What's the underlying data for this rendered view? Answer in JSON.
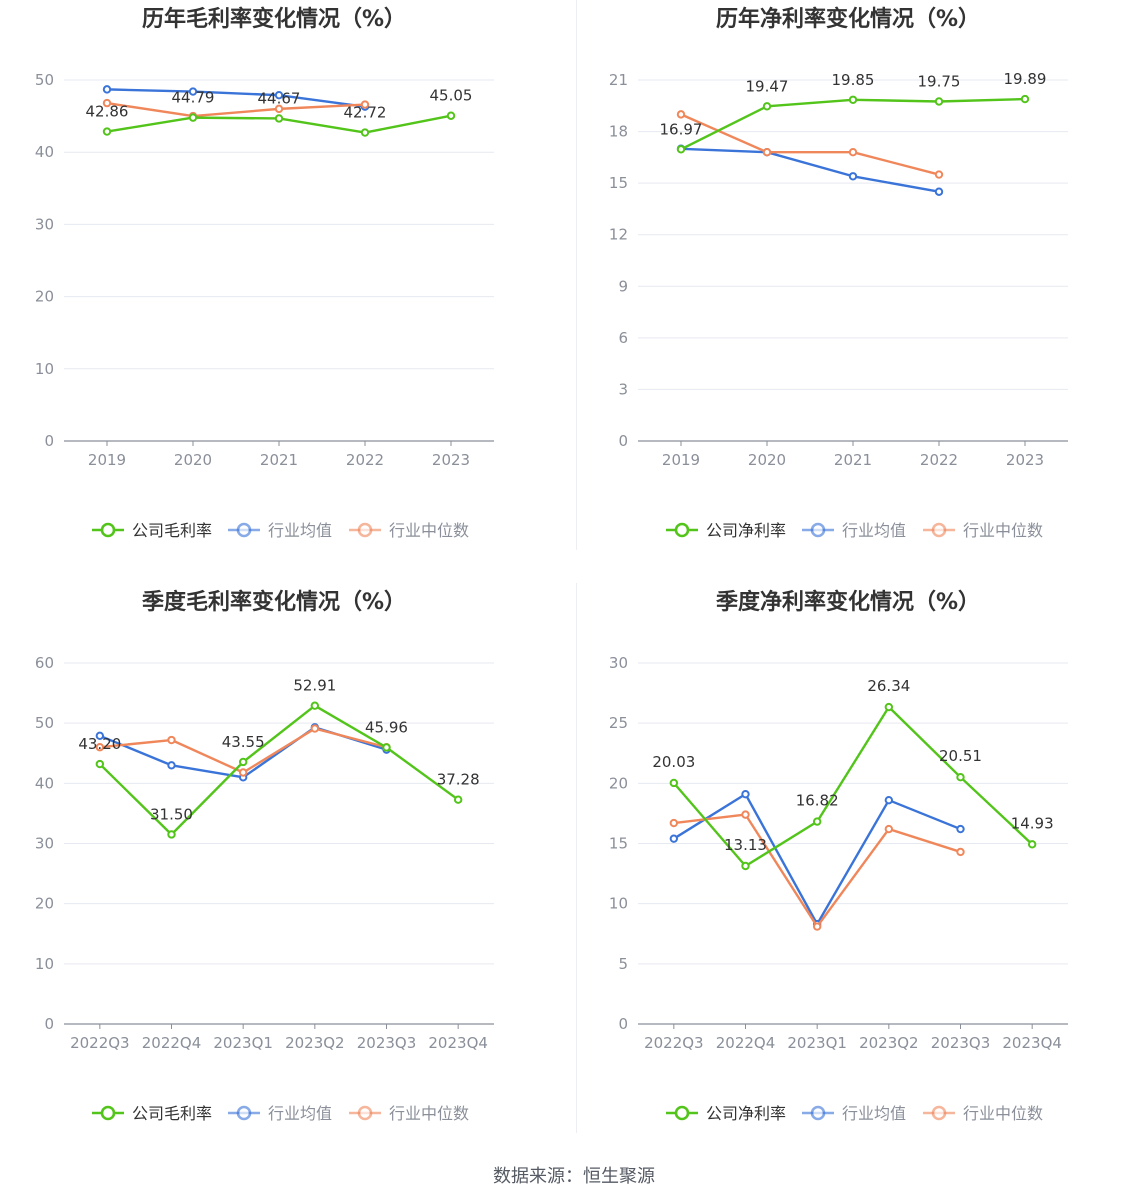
{
  "source_text": "数据来源：恒生聚源",
  "legend_labels": {
    "company_gross": "公司毛利率",
    "company_net": "公司净利率",
    "industry_mean": "行业均值",
    "industry_median": "行业中位数"
  },
  "colors": {
    "company": "#52c41a",
    "industry_mean": "#3a74d9",
    "industry_median": "#f0875b",
    "grid": "#e6e9f0",
    "axis": "#8a8f99",
    "tick_text": "#8a8f99",
    "title": "#333333",
    "data_label": "#333333"
  },
  "chart_data": [
    {
      "type": "line",
      "title": "历年毛利率变化情况（%）",
      "categories": [
        "2019",
        "2020",
        "2021",
        "2022",
        "2023"
      ],
      "ylim": [
        0,
        50
      ],
      "yticks": [
        0,
        10,
        20,
        30,
        40,
        50
      ],
      "series": [
        {
          "key": "company",
          "name": "公司毛利率",
          "values": [
            42.86,
            44.79,
            44.67,
            42.72,
            45.05
          ],
          "labels": [
            "42.86",
            "44.79",
            "44.67",
            "42.72",
            "45.05"
          ]
        },
        {
          "key": "industry_mean",
          "name": "行业均值",
          "values": [
            48.7,
            48.4,
            47.9,
            46.3,
            null
          ]
        },
        {
          "key": "industry_median",
          "name": "行业中位数",
          "values": [
            46.8,
            45.0,
            46.0,
            46.6,
            null
          ]
        }
      ]
    },
    {
      "type": "line",
      "title": "历年净利率变化情况（%）",
      "categories": [
        "2019",
        "2020",
        "2021",
        "2022",
        "2023"
      ],
      "ylim": [
        0,
        21
      ],
      "yticks": [
        0,
        3,
        6,
        9,
        12,
        15,
        18,
        21
      ],
      "series": [
        {
          "key": "company",
          "name": "公司净利率",
          "values": [
            16.97,
            19.47,
            19.85,
            19.75,
            19.89
          ],
          "labels": [
            "16.97",
            "19.47",
            "19.85",
            "19.75",
            "19.89"
          ]
        },
        {
          "key": "industry_mean",
          "name": "行业均值",
          "values": [
            17.0,
            16.8,
            15.4,
            14.5,
            null
          ]
        },
        {
          "key": "industry_median",
          "name": "行业中位数",
          "values": [
            19.0,
            16.8,
            16.8,
            15.5,
            null
          ]
        }
      ]
    },
    {
      "type": "line",
      "title": "季度毛利率变化情况（%）",
      "categories": [
        "2022Q3",
        "2022Q4",
        "2023Q1",
        "2023Q2",
        "2023Q3",
        "2023Q4"
      ],
      "ylim": [
        0,
        60
      ],
      "yticks": [
        0,
        10,
        20,
        30,
        40,
        50,
        60
      ],
      "series": [
        {
          "key": "company",
          "name": "公司毛利率",
          "values": [
            43.2,
            31.5,
            43.55,
            52.91,
            45.96,
            37.28
          ],
          "labels": [
            "43.20",
            "31.50",
            "43.55",
            "52.91",
            "45.96",
            "37.28"
          ]
        },
        {
          "key": "industry_mean",
          "name": "行业均值",
          "values": [
            47.9,
            43.0,
            41.0,
            49.3,
            45.6,
            null
          ]
        },
        {
          "key": "industry_median",
          "name": "行业中位数",
          "values": [
            46.0,
            47.2,
            41.8,
            49.1,
            46.0,
            null
          ]
        }
      ]
    },
    {
      "type": "line",
      "title": "季度净利率变化情况（%）",
      "categories": [
        "2022Q3",
        "2022Q4",
        "2023Q1",
        "2023Q2",
        "2023Q3",
        "2023Q4"
      ],
      "ylim": [
        0,
        30
      ],
      "yticks": [
        0,
        5,
        10,
        15,
        20,
        25,
        30
      ],
      "series": [
        {
          "key": "company",
          "name": "公司净利率",
          "values": [
            20.03,
            13.13,
            16.82,
            26.34,
            20.51,
            14.93
          ],
          "labels": [
            "20.03",
            "13.13",
            "16.82",
            "26.34",
            "20.51",
            "14.93"
          ]
        },
        {
          "key": "industry_mean",
          "name": "行业均值",
          "values": [
            15.4,
            19.1,
            8.3,
            18.6,
            16.2,
            null
          ]
        },
        {
          "key": "industry_median",
          "name": "行业中位数",
          "values": [
            16.7,
            17.4,
            8.1,
            16.2,
            14.3,
            null
          ]
        }
      ]
    }
  ]
}
